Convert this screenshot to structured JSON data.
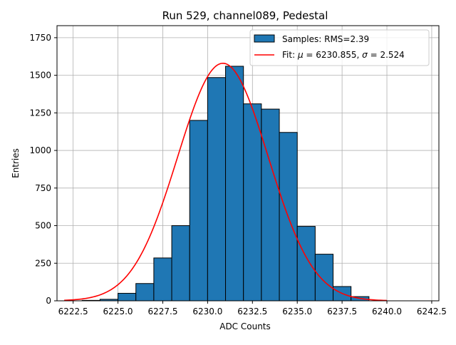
{
  "chart_data": {
    "type": "bar",
    "title": "Run 529, channel089, Pedestal",
    "xlabel": "ADC Counts",
    "ylabel": "Entries",
    "xlim": [
      6221.6,
      6242.9
    ],
    "ylim": [
      0,
      1830
    ],
    "xticks": [
      6222.5,
      6225.0,
      6227.5,
      6230.0,
      6232.5,
      6235.0,
      6237.5,
      6240.0,
      6242.5
    ],
    "xtick_labels": [
      "6222.5",
      "6225.0",
      "6227.5",
      "6230.0",
      "6232.5",
      "6235.0",
      "6237.5",
      "6240.0",
      "6242.5"
    ],
    "yticks": [
      0,
      250,
      500,
      750,
      1000,
      1250,
      1500,
      1750
    ],
    "ytick_labels": [
      "0",
      "250",
      "500",
      "750",
      "1000",
      "1250",
      "1500",
      "1750"
    ],
    "grid": true,
    "legend_position": "top-right",
    "histogram": {
      "name": "Samples: RMS=2.39",
      "color": "#1f77b4",
      "bin_edges": [
        6223,
        6224,
        6225,
        6226,
        6227,
        6228,
        6229,
        6230,
        6231,
        6232,
        6233,
        6234,
        6235,
        6236,
        6237,
        6238,
        6239
      ],
      "counts": [
        3,
        10,
        50,
        115,
        285,
        500,
        1200,
        1485,
        1560,
        1310,
        1275,
        1120,
        495,
        310,
        95,
        28,
        5
      ]
    },
    "fit": {
      "name": "Fit: μ = 6230.855, σ = 2.524",
      "name_prefix": "Fit: ",
      "name_mu": "μ",
      "name_mid": " = 6230.855, ",
      "name_sigma": "σ",
      "name_suffix": " = 2.524",
      "color": "#ff0000",
      "mu": 6230.855,
      "sigma": 2.524,
      "amplitude": 1580,
      "x_range": [
        6222,
        6240
      ]
    }
  }
}
